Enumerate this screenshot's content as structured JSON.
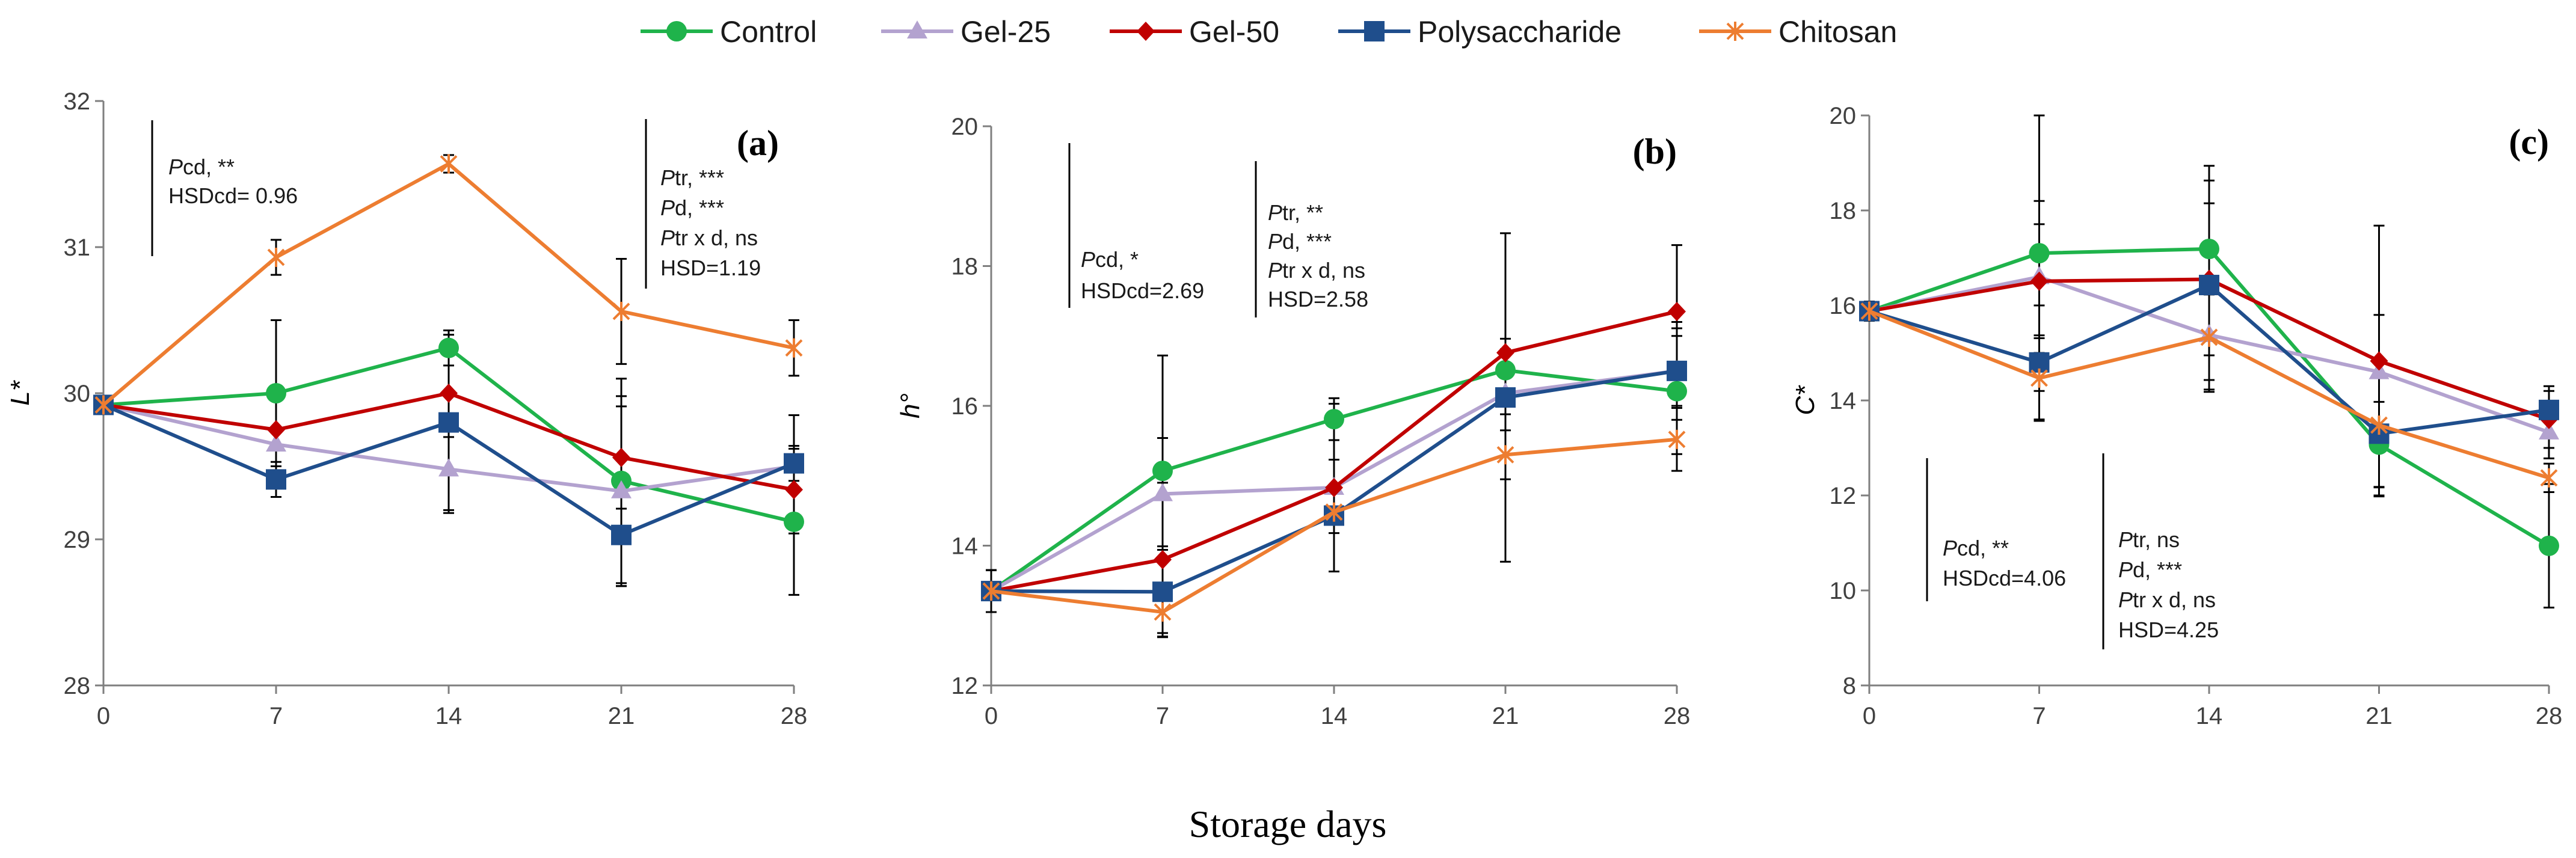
{
  "legend": [
    {
      "name": "Control",
      "color": "#1fb34b",
      "marker": "circle"
    },
    {
      "name": "Gel-25",
      "color": "#b3a2cf",
      "marker": "triangle"
    },
    {
      "name": "Gel-50",
      "color": "#c00000",
      "marker": "diamond"
    },
    {
      "name": "Polysaccharide",
      "color": "#1f4e8c",
      "marker": "square"
    },
    {
      "name": "Chitosan",
      "color": "#ed7d31",
      "marker": "star"
    }
  ],
  "xlabel": "Storage days",
  "chart_data": [
    {
      "type": "line",
      "panel": "(a)",
      "ylabel": "L*",
      "x": [
        0,
        7,
        14,
        21,
        28
      ],
      "ylim": [
        28,
        32
      ],
      "yticks": [
        28,
        29,
        30,
        31,
        32
      ],
      "series": [
        {
          "name": "Control",
          "values": [
            29.92,
            30.0,
            30.31,
            29.4,
            29.12
          ],
          "errors": [
            0.05,
            0.5,
            0.12,
            0.7,
            0.5
          ]
        },
        {
          "name": "Gel-25",
          "values": [
            29.92,
            29.65,
            29.48,
            29.33,
            29.5
          ],
          "errors": [
            0.05,
            0.3,
            0.3,
            0.65,
            0.35
          ]
        },
        {
          "name": "Gel-50",
          "values": [
            29.92,
            29.75,
            30.0,
            29.56,
            29.34
          ],
          "errors": [
            0.05,
            0.3,
            0.3,
            0.35,
            0.3
          ]
        },
        {
          "name": "Polysaccharide",
          "values": [
            29.92,
            29.41,
            29.8,
            29.03,
            29.52
          ],
          "errors": [
            0.05,
            0.12,
            0.6,
            0.35,
            0.12
          ]
        },
        {
          "name": "Chitosan",
          "values": [
            29.92,
            30.93,
            31.57,
            30.56,
            30.31
          ],
          "errors": [
            0.05,
            0.12,
            0.06,
            0.36,
            0.19
          ]
        }
      ],
      "annotations": [
        {
          "lines": [
            {
              "it": "P",
              "rest": "cd, **"
            },
            {
              "it": "",
              "rest": "HSDcd= 0.96"
            }
          ]
        },
        {
          "lines": [
            {
              "it": "P",
              "rest": "tr, ***"
            },
            {
              "it": "P",
              "rest": "d, ***"
            },
            {
              "it": "P",
              "rest": "tr x d, ns"
            },
            {
              "it": "",
              "rest": "HSD=1.19"
            }
          ]
        }
      ]
    },
    {
      "type": "line",
      "panel": "(b)",
      "ylabel": "h°",
      "x": [
        0,
        7,
        14,
        21,
        28
      ],
      "ylim": [
        12,
        20
      ],
      "yticks": [
        12,
        14,
        16,
        18,
        20
      ],
      "series": [
        {
          "name": "Control",
          "values": [
            13.35,
            15.07,
            15.81,
            16.51,
            16.21
          ],
          "errors": [
            0.3,
            1.65,
            0.3,
            0.3,
            0.9
          ]
        },
        {
          "name": "Gel-25",
          "values": [
            13.35,
            14.74,
            14.83,
            16.18,
            16.5
          ],
          "errors": [
            0.3,
            0.8,
            1.2,
            0.3,
            0.7
          ]
        },
        {
          "name": "Gel-50",
          "values": [
            13.35,
            13.8,
            14.83,
            16.76,
            17.35
          ],
          "errors": [
            0.3,
            1.1,
            1.2,
            0.2,
            0.95
          ]
        },
        {
          "name": "Polysaccharide",
          "values": [
            13.35,
            13.34,
            14.43,
            16.12,
            16.5
          ],
          "errors": [
            0.3,
            0.65,
            0.8,
            2.35,
            0.5
          ]
        },
        {
          "name": "Chitosan",
          "values": [
            13.35,
            13.05,
            14.48,
            15.3,
            15.52
          ],
          "errors": [
            0.3,
            0.3,
            0.3,
            0.35,
            0.45
          ]
        }
      ],
      "annotations": [
        {
          "lines": [
            {
              "it": "P",
              "rest": "cd, *"
            },
            {
              "it": "",
              "rest": "HSDcd=2.69"
            }
          ]
        },
        {
          "lines": [
            {
              "it": "P",
              "rest": "tr, **"
            },
            {
              "it": "P",
              "rest": "d, ***"
            },
            {
              "it": "P",
              "rest": "tr x d, ns"
            },
            {
              "it": "",
              "rest": "HSD=2.58"
            }
          ]
        }
      ]
    },
    {
      "type": "line",
      "panel": "(c)",
      "ylabel": "C*",
      "x": [
        0,
        7,
        14,
        21,
        28
      ],
      "ylim": [
        8,
        20
      ],
      "yticks": [
        8,
        10,
        12,
        14,
        16,
        18,
        20
      ],
      "series": [
        {
          "name": "Control",
          "values": [
            15.88,
            17.1,
            17.19,
            13.07,
            10.94
          ],
          "errors": [
            0.2,
            2.9,
            1.75,
            0.9,
            1.3
          ]
        },
        {
          "name": "Gel-25",
          "values": [
            15.88,
            16.6,
            15.38,
            14.6,
            13.33
          ],
          "errors": [
            0.2,
            1.6,
            1.2,
            1.2,
            0.55
          ]
        },
        {
          "name": "Gel-50",
          "values": [
            15.88,
            16.51,
            16.55,
            14.83,
            13.6
          ],
          "errors": [
            0.2,
            1.2,
            1.6,
            2.85,
            0.6
          ]
        },
        {
          "name": "Polysaccharide",
          "values": [
            15.88,
            14.8,
            16.43,
            13.3,
            13.8
          ],
          "errors": [
            0.2,
            1.2,
            2.2,
            1.3,
            0.5
          ]
        },
        {
          "name": "Chitosan",
          "values": [
            15.88,
            14.47,
            15.33,
            13.48,
            12.37
          ],
          "errors": [
            0.2,
            0.9,
            0.9,
            1.3,
            0.3
          ]
        }
      ],
      "annotations": [
        {
          "lines": [
            {
              "it": "P",
              "rest": "cd, **"
            },
            {
              "it": "",
              "rest": "HSDcd=4.06"
            }
          ]
        },
        {
          "lines": [
            {
              "it": "P",
              "rest": "tr, ns"
            },
            {
              "it": "P",
              "rest": "d, ***"
            },
            {
              "it": "P",
              "rest": "tr x d, ns"
            },
            {
              "it": "",
              "rest": "HSD=4.25"
            }
          ]
        }
      ]
    }
  ]
}
